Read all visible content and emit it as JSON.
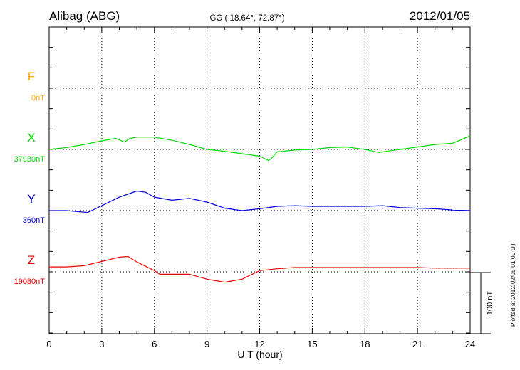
{
  "header": {
    "station": "Alibag (ABG)",
    "coords": "GG ( 18.64°,  72.87°)",
    "date": "2012/01/05"
  },
  "footer": {
    "plotted": "Plotted at 2012/02/05 01:00 UT"
  },
  "chart_data": {
    "type": "line",
    "xlabel": "U T (hour)",
    "xlim": [
      0,
      24
    ],
    "x_ticks": [
      "0",
      "3",
      "6",
      "9",
      "12",
      "15",
      "18",
      "21",
      "24"
    ],
    "scale_bar_label": "100 nT",
    "grid": true,
    "components": [
      {
        "name": "F",
        "baseline_label": "0nT",
        "color": "#ffa500"
      },
      {
        "name": "X",
        "baseline_label": "37930nT",
        "color": "#00dd00"
      },
      {
        "name": "Y",
        "baseline_label": "360nT",
        "color": "#0000dd"
      },
      {
        "name": "Z",
        "baseline_label": "19080nT",
        "color": "#ee0000"
      }
    ],
    "series": [
      {
        "name": "X",
        "x": [
          0,
          1,
          2,
          3,
          3.8,
          4.3,
          4.6,
          5,
          6,
          7,
          8,
          9,
          10,
          11,
          12,
          12.5,
          12.7,
          13,
          14,
          15,
          16,
          17,
          18,
          18.8,
          19.5,
          20,
          21,
          22,
          23,
          24
        ],
        "y": [
          0,
          3,
          8,
          14,
          18,
          12,
          18,
          20,
          20,
          15,
          8,
          0,
          -3,
          -7,
          -11,
          -18,
          -14,
          -4,
          -1,
          0,
          3,
          4,
          0,
          -5,
          -2,
          0,
          4,
          8,
          10,
          22
        ]
      },
      {
        "name": "Y",
        "x": [
          0,
          1,
          2.2,
          3,
          4,
          5,
          5.5,
          6,
          7,
          8,
          9,
          10,
          11,
          12,
          13,
          14,
          15,
          16,
          17,
          18,
          19,
          20,
          21,
          22,
          23,
          24
        ],
        "y": [
          0,
          0,
          -3,
          8,
          22,
          32,
          30,
          22,
          17,
          20,
          14,
          4,
          0,
          3,
          7,
          8,
          7,
          7,
          7,
          7,
          8,
          5,
          4,
          3,
          1,
          0
        ]
      },
      {
        "name": "Z",
        "x": [
          0,
          1,
          2,
          3,
          4,
          4.5,
          5,
          6,
          6.3,
          7,
          8,
          9,
          10,
          11,
          12,
          13,
          14,
          15,
          16,
          17,
          18,
          19,
          20,
          21,
          22,
          23,
          24
        ],
        "y": [
          8,
          8,
          10,
          17,
          24,
          25,
          16,
          2,
          -4,
          -4,
          -4,
          -12,
          -17,
          -12,
          2,
          5,
          7,
          7,
          7,
          7,
          7,
          7,
          7,
          7,
          6,
          6,
          6
        ]
      }
    ]
  }
}
